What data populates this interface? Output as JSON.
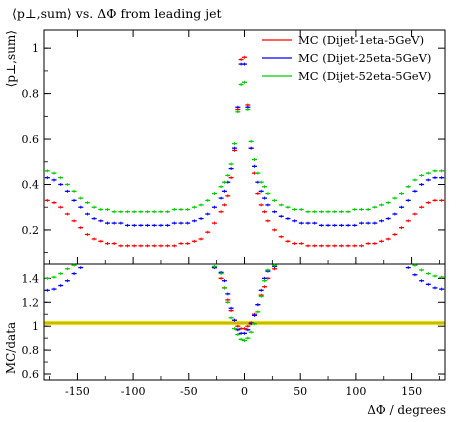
{
  "chart_data": [
    {
      "type": "scatter",
      "title": "⟨p⊥,sum⟩ vs. ΔΦ from leading jet",
      "ylabel": "⟨p⊥,sum⟩",
      "xlim": [
        -180,
        180
      ],
      "ylim": [
        0.05,
        1.08
      ],
      "yticks": [
        "0.2",
        "0.4",
        "0.6",
        "0.8",
        "1"
      ],
      "legend_position": "top-right",
      "series": [
        {
          "name": "MC (Dijet-1eta-5GeV)",
          "color": "#ff0000",
          "x": [
            -177,
            -171,
            -165,
            -159,
            -153,
            -147,
            -141,
            -135,
            -129,
            -123,
            -117,
            -111,
            -105,
            -99,
            -93,
            -87,
            -81,
            -75,
            -69,
            -63,
            -57,
            -51,
            -45,
            -39,
            -33,
            -27,
            -21,
            -18,
            -15,
            -12,
            -9,
            -6,
            -3,
            0,
            3,
            6,
            9,
            12,
            15,
            18,
            21,
            27,
            33,
            39,
            45,
            51,
            57,
            63,
            69,
            75,
            81,
            87,
            93,
            99,
            105,
            111,
            117,
            123,
            129,
            135,
            141,
            147,
            153,
            159,
            165,
            171,
            177
          ],
          "y": [
            0.33,
            0.32,
            0.3,
            0.27,
            0.24,
            0.21,
            0.18,
            0.16,
            0.15,
            0.14,
            0.14,
            0.13,
            0.13,
            0.13,
            0.13,
            0.13,
            0.13,
            0.13,
            0.13,
            0.13,
            0.14,
            0.14,
            0.15,
            0.16,
            0.19,
            0.23,
            0.28,
            0.31,
            0.35,
            0.43,
            0.55,
            0.73,
            0.95,
            0.96,
            0.75,
            0.56,
            0.45,
            0.36,
            0.31,
            0.28,
            0.24,
            0.2,
            0.17,
            0.15,
            0.14,
            0.14,
            0.13,
            0.13,
            0.13,
            0.13,
            0.13,
            0.13,
            0.13,
            0.13,
            0.13,
            0.14,
            0.14,
            0.15,
            0.16,
            0.18,
            0.21,
            0.24,
            0.27,
            0.3,
            0.32,
            0.33,
            0.33
          ]
        },
        {
          "name": "MC (Dijet-25eta-5GeV)",
          "color": "#0000ff",
          "x": [
            -177,
            -171,
            -165,
            -159,
            -153,
            -147,
            -141,
            -135,
            -129,
            -123,
            -117,
            -111,
            -105,
            -99,
            -93,
            -87,
            -81,
            -75,
            -69,
            -63,
            -57,
            -51,
            -45,
            -39,
            -33,
            -27,
            -21,
            -18,
            -15,
            -12,
            -9,
            -6,
            -3,
            0,
            3,
            6,
            9,
            12,
            15,
            18,
            21,
            27,
            33,
            39,
            45,
            51,
            57,
            63,
            69,
            75,
            81,
            87,
            93,
            99,
            105,
            111,
            117,
            123,
            129,
            135,
            141,
            147,
            153,
            159,
            165,
            171,
            177
          ],
          "y": [
            0.43,
            0.42,
            0.4,
            0.37,
            0.33,
            0.3,
            0.27,
            0.25,
            0.24,
            0.23,
            0.23,
            0.23,
            0.22,
            0.22,
            0.22,
            0.22,
            0.22,
            0.22,
            0.22,
            0.23,
            0.23,
            0.23,
            0.24,
            0.25,
            0.27,
            0.3,
            0.34,
            0.37,
            0.41,
            0.47,
            0.56,
            0.74,
            0.93,
            0.93,
            0.74,
            0.56,
            0.48,
            0.41,
            0.37,
            0.34,
            0.31,
            0.28,
            0.26,
            0.25,
            0.24,
            0.23,
            0.23,
            0.23,
            0.22,
            0.22,
            0.22,
            0.22,
            0.22,
            0.22,
            0.23,
            0.23,
            0.23,
            0.24,
            0.25,
            0.27,
            0.3,
            0.33,
            0.37,
            0.4,
            0.42,
            0.43,
            0.43
          ]
        },
        {
          "name": "MC (Dijet-52eta-5GeV)",
          "color": "#00cc00",
          "x": [
            -177,
            -171,
            -165,
            -159,
            -153,
            -147,
            -141,
            -135,
            -129,
            -123,
            -117,
            -111,
            -105,
            -99,
            -93,
            -87,
            -81,
            -75,
            -69,
            -63,
            -57,
            -51,
            -45,
            -39,
            -33,
            -27,
            -21,
            -18,
            -15,
            -12,
            -9,
            -6,
            -3,
            0,
            3,
            6,
            9,
            12,
            15,
            18,
            21,
            27,
            33,
            39,
            45,
            51,
            57,
            63,
            69,
            75,
            81,
            87,
            93,
            99,
            105,
            111,
            117,
            123,
            129,
            135,
            141,
            147,
            153,
            159,
            165,
            171,
            177
          ],
          "y": [
            0.46,
            0.45,
            0.43,
            0.4,
            0.37,
            0.34,
            0.32,
            0.3,
            0.29,
            0.29,
            0.28,
            0.28,
            0.28,
            0.28,
            0.28,
            0.28,
            0.28,
            0.28,
            0.28,
            0.29,
            0.29,
            0.29,
            0.3,
            0.31,
            0.33,
            0.36,
            0.39,
            0.41,
            0.44,
            0.49,
            0.58,
            0.72,
            0.84,
            0.85,
            0.73,
            0.59,
            0.51,
            0.45,
            0.41,
            0.39,
            0.36,
            0.33,
            0.31,
            0.3,
            0.29,
            0.29,
            0.28,
            0.28,
            0.28,
            0.28,
            0.28,
            0.28,
            0.28,
            0.29,
            0.29,
            0.29,
            0.3,
            0.31,
            0.32,
            0.34,
            0.36,
            0.39,
            0.42,
            0.44,
            0.45,
            0.46,
            0.46
          ]
        }
      ]
    },
    {
      "type": "scatter",
      "xlabel": "ΔΦ / degrees",
      "ylabel": "MC/data",
      "xlim": [
        -180,
        180
      ],
      "ylim": [
        0.55,
        1.52
      ],
      "xticks": [
        "-150",
        "-100",
        "-50",
        "0",
        "50",
        "100",
        "150"
      ],
      "yticks": [
        "0.6",
        "0.8",
        "1",
        "1.2",
        "1.4"
      ],
      "reference_band": {
        "y": 1.0,
        "low": 0.99,
        "high": 1.01,
        "color": "#f0e000"
      },
      "series": [
        {
          "name": "MC (Dijet-1eta-5GeV)",
          "color": "#ff0000",
          "x": [
            -27,
            -21,
            -18,
            -15,
            -12,
            -9,
            -6,
            -3,
            0,
            3,
            6,
            9,
            12,
            15,
            18,
            21,
            27
          ],
          "y": [
            1.49,
            1.4,
            1.32,
            1.22,
            1.13,
            1.05,
            1.0,
            0.98,
            0.98,
            1.0,
            1.03,
            1.1,
            1.18,
            1.26,
            1.33,
            1.4,
            1.48
          ]
        },
        {
          "name": "MC (Dijet-25eta-5GeV)",
          "color": "#0000ff",
          "x": [
            -177,
            -171,
            -165,
            -159,
            -153,
            -147,
            -27,
            -21,
            -18,
            -15,
            -12,
            -9,
            -6,
            -3,
            0,
            3,
            6,
            9,
            12,
            15,
            18,
            21,
            27,
            147,
            153,
            159,
            165,
            171,
            177
          ],
          "y": [
            1.3,
            1.31,
            1.34,
            1.38,
            1.44,
            1.49,
            1.49,
            1.45,
            1.38,
            1.27,
            1.15,
            1.05,
            0.97,
            0.94,
            0.94,
            0.97,
            1.02,
            1.09,
            1.18,
            1.3,
            1.4,
            1.46,
            1.5,
            1.49,
            1.43,
            1.38,
            1.35,
            1.32,
            1.31
          ]
        },
        {
          "name": "MC (Dijet-52eta-5GeV)",
          "color": "#00cc00",
          "x": [
            -177,
            -171,
            -165,
            -159,
            -153,
            -27,
            -21,
            -18,
            -15,
            -12,
            -9,
            -6,
            -3,
            0,
            3,
            6,
            9,
            12,
            15,
            18,
            21,
            27,
            153,
            159,
            165,
            171,
            177
          ],
          "y": [
            1.4,
            1.41,
            1.44,
            1.48,
            1.51,
            1.5,
            1.44,
            1.32,
            1.2,
            1.07,
            0.98,
            0.93,
            0.89,
            0.88,
            0.9,
            0.95,
            1.02,
            1.12,
            1.25,
            1.38,
            1.47,
            1.51,
            1.51,
            1.47,
            1.44,
            1.42,
            1.41
          ]
        }
      ]
    }
  ]
}
